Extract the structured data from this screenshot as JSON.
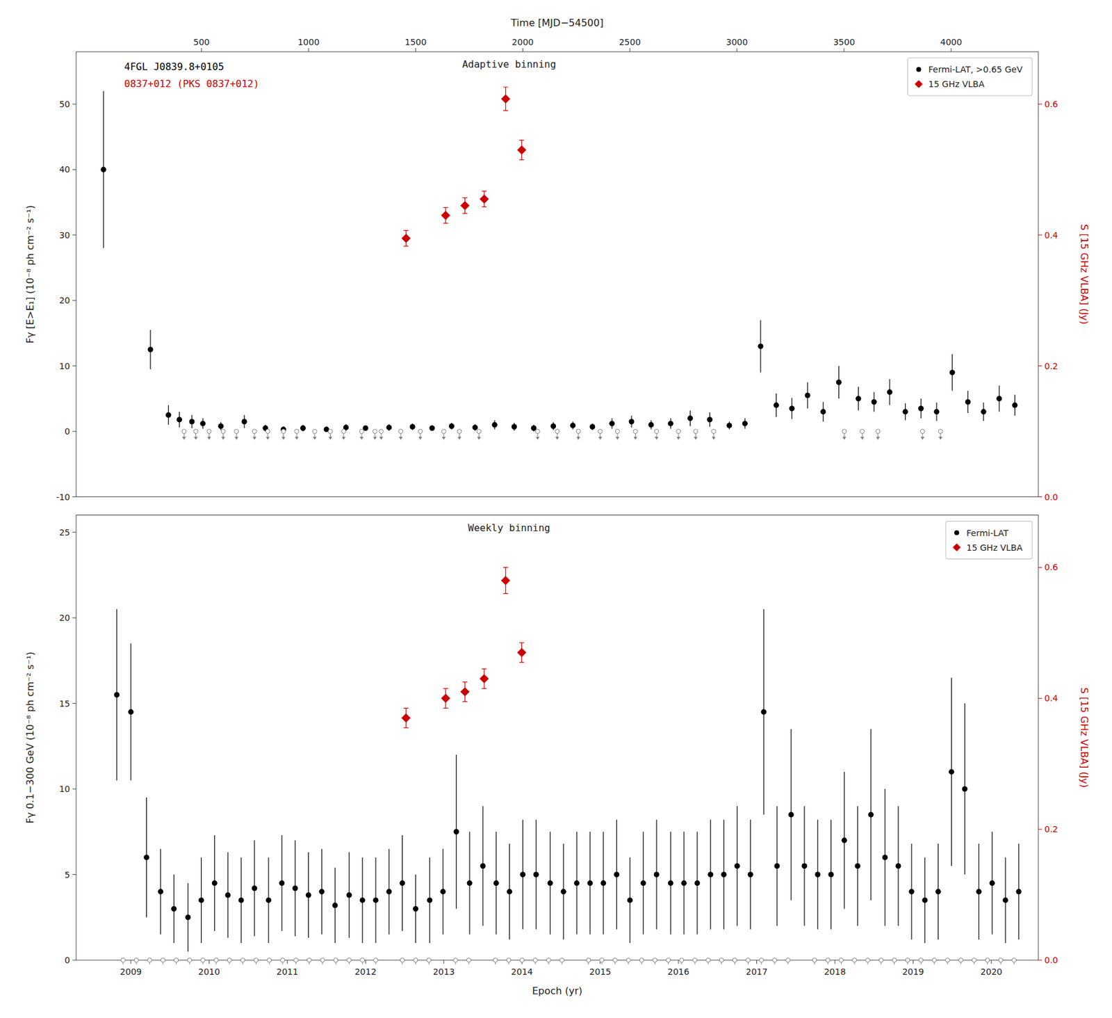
{
  "chart_data": [
    {
      "type": "scatter",
      "title": "Adaptive binning",
      "x2label": "Time [MJD−54500]",
      "ylabel": "Fγ [E>E₁] (10⁻⁸ ph cm⁻² s⁻¹)",
      "y2label": "S [15 GHz VLBA] (Jy)",
      "xlim": [
        2008.3,
        2020.6
      ],
      "x2lim": [
        2008.3,
        2020.6
      ],
      "x2ticks": [
        {
          "value": 2009.902925,
          "label": "500"
        },
        {
          "value": 2011.271851,
          "label": "1000"
        },
        {
          "value": 2012.640776,
          "label": "1500"
        },
        {
          "value": 2014.009702,
          "label": "2000"
        },
        {
          "value": 2015.378627,
          "label": "2500"
        },
        {
          "value": 2016.747552,
          "label": "3000"
        },
        {
          "value": 2018.116478,
          "label": "3500"
        },
        {
          "value": 2019.485403,
          "label": "4000"
        }
      ],
      "ylim": [
        -10,
        58
      ],
      "yticks": [
        -10,
        0,
        10,
        20,
        30,
        40,
        50
      ],
      "y2lim": [
        0,
        0.68
      ],
      "y2ticks": [
        {
          "value": 0,
          "label": "0.0"
        },
        0.2,
        0.4,
        0.6
      ],
      "grid": false,
      "legend": "upper right",
      "annotations": [
        {
          "text": "4FGL J0839.8+0105",
          "color": "black"
        },
        {
          "text": "0837+012 (PKS 0837+012)",
          "color": "#cc0000"
        }
      ],
      "series": [
        {
          "name": "Fermi-LAT, >0.65 GeV",
          "color": "black",
          "marker": "circle",
          "x": [
            2008.65,
            2009.25,
            2009.48,
            2009.62,
            2009.78,
            2009.92,
            2010.15,
            2010.45,
            2010.72,
            2010.95,
            2011.2,
            2011.5,
            2011.75,
            2012.0,
            2012.3,
            2012.6,
            2012.85,
            2013.1,
            2013.4,
            2013.65,
            2013.9,
            2014.15,
            2014.4,
            2014.65,
            2014.9,
            2015.15,
            2015.4,
            2015.65,
            2015.9,
            2016.15,
            2016.4,
            2016.65,
            2016.85,
            2017.05,
            2017.25,
            2017.45,
            2017.65,
            2017.85,
            2018.05,
            2018.3,
            2018.5,
            2018.7,
            2018.9,
            2019.1,
            2019.3,
            2019.5,
            2019.7,
            2019.9,
            2020.1,
            2020.3
          ],
          "values": [
            40.0,
            12.5,
            2.5,
            1.8,
            1.5,
            1.2,
            0.8,
            1.5,
            0.5,
            0.3,
            0.5,
            0.3,
            0.6,
            0.5,
            0.6,
            0.7,
            0.5,
            0.8,
            0.6,
            1.0,
            0.7,
            0.5,
            0.8,
            0.9,
            0.7,
            1.2,
            1.5,
            1.0,
            1.2,
            2.0,
            1.8,
            0.9,
            1.2,
            13.0,
            4.0,
            3.5,
            5.5,
            3.0,
            7.5,
            5.0,
            4.5,
            6.0,
            3.0,
            3.5,
            3.0,
            9.0,
            4.5,
            3.0,
            5.0,
            4.0
          ],
          "errors": [
            12.0,
            3.0,
            1.5,
            1.2,
            1.0,
            0.8,
            0.6,
            1.0,
            0.5,
            0.4,
            0.5,
            0.3,
            0.5,
            0.4,
            0.5,
            0.5,
            0.4,
            0.5,
            0.5,
            0.7,
            0.6,
            0.5,
            0.6,
            0.6,
            0.5,
            0.8,
            0.9,
            0.7,
            0.8,
            1.2,
            1.1,
            0.6,
            0.8,
            4.0,
            1.8,
            1.6,
            2.0,
            1.5,
            2.5,
            1.8,
            1.5,
            2.0,
            1.3,
            1.5,
            1.4,
            2.8,
            1.7,
            1.4,
            2.0,
            1.6
          ]
        },
        {
          "name": "15 GHz VLBA",
          "color": "#cc0000",
          "marker": "diamond",
          "axis": "y2",
          "x": [
            2012.517573,
            2013.024075,
            2013.270482,
            2013.516888,
            2013.790674,
            2013.996012
          ],
          "values": [
            0.395,
            0.43,
            0.445,
            0.455,
            0.608,
            0.53
          ],
          "errors": [
            0.012,
            0.012,
            0.012,
            0.012,
            0.018,
            0.015
          ]
        },
        {
          "type": "upper_limit",
          "color": "#808080",
          "marker": "arrow",
          "x": [
            2009.68,
            2009.83,
            2010.0,
            2010.18,
            2010.35,
            2010.58,
            2010.75,
            2010.95,
            2011.12,
            2011.35,
            2011.55,
            2011.72,
            2011.95,
            2012.12,
            2012.2,
            2012.45,
            2012.7,
            2013.0,
            2013.2,
            2013.45,
            2014.2,
            2014.45,
            2014.72,
            2015.0,
            2015.22,
            2015.45,
            2015.72,
            2016.0,
            2016.22,
            2016.45,
            2018.12,
            2018.35,
            2018.55,
            2019.12,
            2019.35
          ],
          "values": [
            0,
            0,
            0,
            0,
            0,
            0,
            0,
            0,
            0,
            0,
            0,
            0,
            0,
            0,
            0,
            0,
            0,
            0,
            0,
            0,
            0,
            0,
            0,
            0,
            0,
            0,
            0,
            0,
            0,
            0,
            0,
            0,
            0,
            0,
            0
          ]
        }
      ]
    },
    {
      "type": "scatter",
      "title": "Weekly binning",
      "xlabel": "Epoch (yr)",
      "ylabel": "Fγ 0.1−300 GeV (10⁻⁸ ph cm⁻² s⁻¹)",
      "y2label": "S [15 GHz VLBA] (Jy)",
      "xlim": [
        2008.3,
        2020.6
      ],
      "xticks": [
        2009,
        2010,
        2011,
        2012,
        2013,
        2014,
        2015,
        2016,
        2017,
        2018,
        2019,
        2020
      ],
      "ylim": [
        0,
        26
      ],
      "yticks": [
        0,
        5,
        10,
        15,
        20,
        25
      ],
      "y2lim": [
        0,
        0.68
      ],
      "y2ticks": [
        {
          "value": 0,
          "label": "0.0"
        },
        0.2,
        0.4,
        0.6
      ],
      "grid": false,
      "legend": "upper right",
      "series": [
        {
          "name": "Fermi-LAT",
          "color": "black",
          "marker": "circle",
          "x": [
            2008.82,
            2009.0,
            2009.2,
            2009.38,
            2009.55,
            2009.73,
            2009.9,
            2010.07,
            2010.24,
            2010.41,
            2010.58,
            2010.76,
            2010.93,
            2011.1,
            2011.27,
            2011.44,
            2011.61,
            2011.79,
            2011.96,
            2012.13,
            2012.3,
            2012.47,
            2012.64,
            2012.82,
            2012.99,
            2013.16,
            2013.33,
            2013.5,
            2013.67,
            2013.84,
            2014.01,
            2014.18,
            2014.36,
            2014.53,
            2014.7,
            2014.87,
            2015.04,
            2015.21,
            2015.38,
            2015.55,
            2015.72,
            2015.9,
            2016.07,
            2016.24,
            2016.41,
            2016.58,
            2016.75,
            2016.92,
            2017.09,
            2017.26,
            2017.44,
            2017.61,
            2017.78,
            2017.95,
            2018.12,
            2018.29,
            2018.46,
            2018.64,
            2018.81,
            2018.98,
            2019.15,
            2019.32,
            2019.49,
            2019.66,
            2019.84,
            2020.01,
            2020.18,
            2020.35
          ],
          "values": [
            15.5,
            14.5,
            6.0,
            4.0,
            3.0,
            2.5,
            3.5,
            4.5,
            3.8,
            3.5,
            4.2,
            3.5,
            4.5,
            4.2,
            3.8,
            4.0,
            3.2,
            3.8,
            3.5,
            3.5,
            4.0,
            4.5,
            3.0,
            3.5,
            4.0,
            7.5,
            4.5,
            5.5,
            4.5,
            4.0,
            5.0,
            5.0,
            4.5,
            4.0,
            4.5,
            4.5,
            4.5,
            5.0,
            3.5,
            4.5,
            5.0,
            4.5,
            4.5,
            4.5,
            5.0,
            5.0,
            5.5,
            5.0,
            14.5,
            5.5,
            8.5,
            5.5,
            5.0,
            5.0,
            7.0,
            5.5,
            8.5,
            6.0,
            5.5,
            4.0,
            3.5,
            4.0,
            11.0,
            10.0,
            4.0,
            4.5,
            3.5,
            4.0
          ],
          "errors": [
            5.0,
            4.0,
            3.5,
            2.5,
            2.0,
            2.0,
            2.5,
            2.8,
            2.5,
            2.5,
            2.8,
            2.5,
            2.8,
            2.8,
            2.5,
            2.5,
            2.2,
            2.5,
            2.5,
            2.5,
            2.5,
            2.8,
            2.0,
            2.5,
            2.5,
            4.5,
            3.0,
            3.5,
            3.0,
            2.8,
            3.2,
            3.2,
            3.0,
            2.8,
            3.0,
            3.0,
            3.0,
            3.2,
            2.5,
            3.0,
            3.2,
            3.0,
            3.0,
            3.0,
            3.2,
            3.2,
            3.5,
            3.2,
            6.0,
            3.5,
            5.0,
            3.5,
            3.2,
            3.2,
            4.0,
            3.5,
            5.0,
            4.0,
            3.5,
            2.8,
            2.5,
            2.8,
            5.5,
            5.0,
            2.8,
            3.0,
            2.5,
            2.8
          ]
        },
        {
          "name": "15 GHz VLBA",
          "color": "#cc0000",
          "marker": "diamond",
          "axis": "y2",
          "x": [
            2012.517573,
            2013.024075,
            2013.270482,
            2013.516888,
            2013.790674,
            2013.996012
          ],
          "values": [
            0.37,
            0.4,
            0.41,
            0.43,
            0.58,
            0.47
          ],
          "errors": [
            0.015,
            0.015,
            0.015,
            0.015,
            0.02,
            0.015
          ]
        },
        {
          "type": "upper_limit",
          "color": "#808080",
          "marker": "arrow",
          "x": [
            2008.9,
            2009.07,
            2009.24,
            2009.41,
            2009.58,
            2009.75,
            2009.92,
            2010.09,
            2010.26,
            2010.43,
            2010.6,
            2010.77,
            2010.94,
            2011.11,
            2011.28,
            2011.45,
            2011.62,
            2011.79,
            2011.96,
            2012.13,
            2012.47,
            2012.64,
            2012.81,
            2013.15,
            2013.32,
            2013.66,
            2013.83,
            2014.0,
            2014.17,
            2014.34,
            2014.51,
            2014.85,
            2015.02,
            2015.19,
            2015.36,
            2015.53,
            2015.7,
            2015.87,
            2016.04,
            2016.21,
            2016.38,
            2016.55,
            2016.72,
            2016.89,
            2017.06,
            2017.23,
            2017.4,
            2017.74,
            2017.91,
            2018.08,
            2018.25,
            2018.42,
            2018.59,
            2018.76,
            2018.93,
            2019.1,
            2019.27,
            2019.44,
            2019.61,
            2019.78,
            2019.95,
            2020.12,
            2020.29
          ],
          "values": [
            0,
            0,
            0,
            0,
            0,
            0,
            0,
            0,
            0,
            0,
            0,
            0,
            0,
            0,
            0,
            0,
            0,
            0,
            0,
            0,
            0,
            0,
            0,
            0,
            0,
            0,
            0,
            0,
            0,
            0,
            0,
            0,
            0,
            0,
            0,
            0,
            0,
            0,
            0,
            0,
            0,
            0,
            0,
            0,
            0,
            0,
            0,
            0,
            0,
            0,
            0,
            0,
            0,
            0,
            0,
            0,
            0,
            0,
            0,
            0,
            0,
            0,
            0
          ]
        }
      ]
    }
  ]
}
